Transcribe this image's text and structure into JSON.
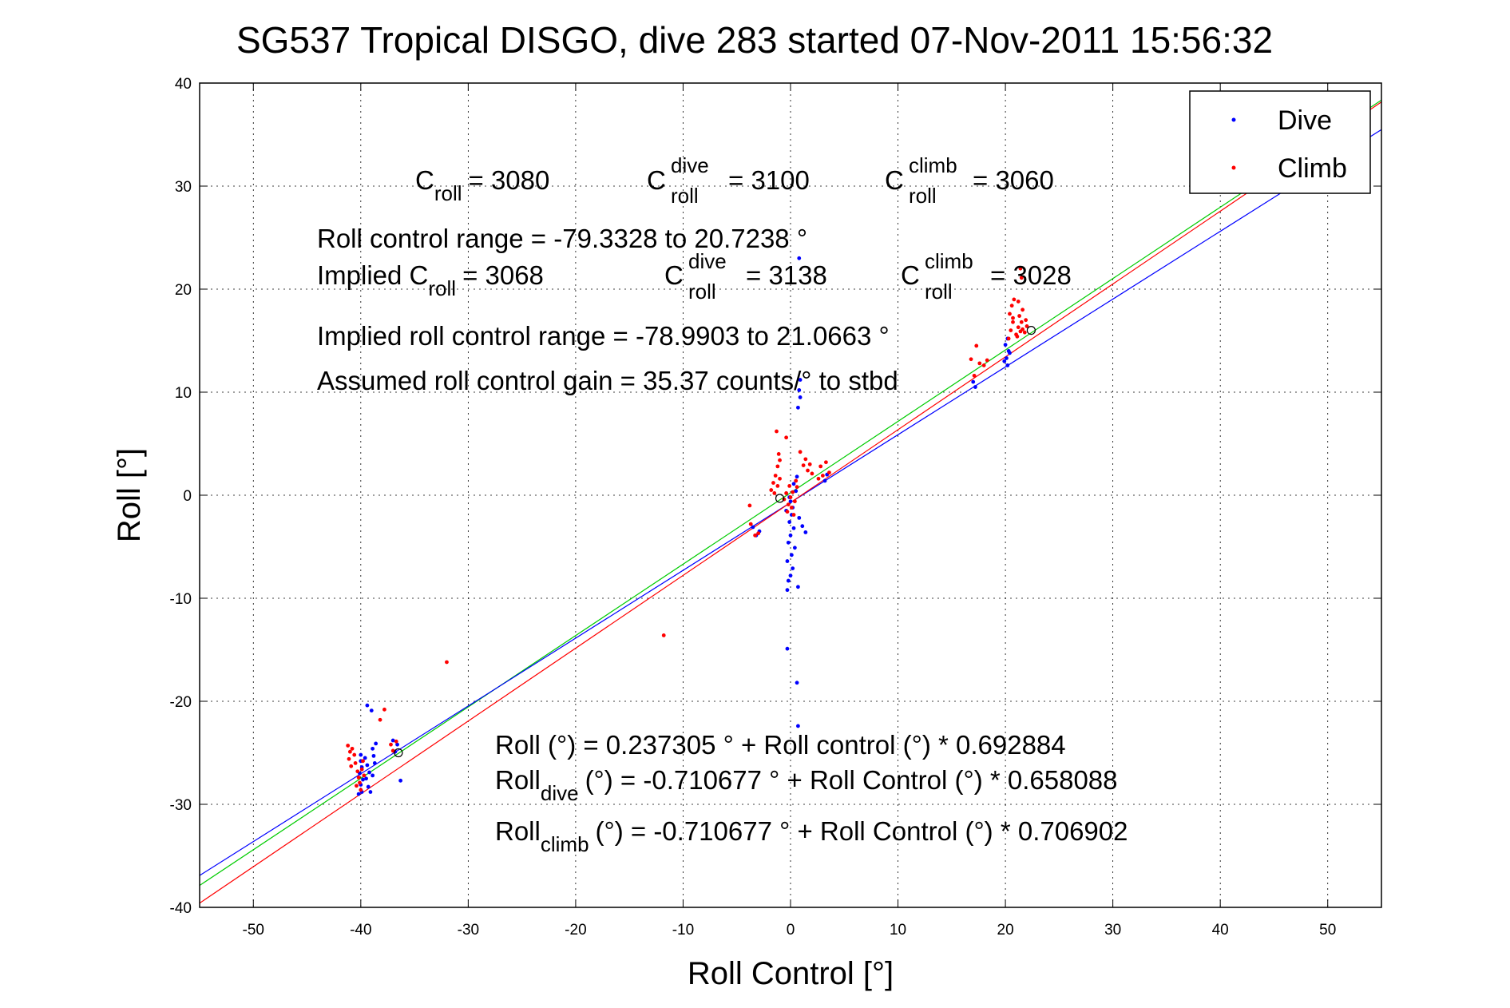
{
  "chart_data": {
    "type": "scatter",
    "title": "SG537 Tropical DISGO, dive 283 started 07-Nov-2011 15:56:32",
    "xlabel": "Roll Control [°]",
    "ylabel": "Roll [°]",
    "xlim": [
      -55,
      55
    ],
    "ylim": [
      -40,
      40
    ],
    "x_ticks": [
      -50,
      -40,
      -30,
      -20,
      -10,
      0,
      10,
      20,
      30,
      40,
      50
    ],
    "y_ticks": [
      40,
      30,
      20,
      10,
      0,
      -10,
      -20,
      -30,
      -40
    ],
    "grid": true,
    "legend": {
      "position": "top-right",
      "entries": [
        {
          "label": "Dive",
          "color": "#0000ff"
        },
        {
          "label": "Climb",
          "color": "#ff0000"
        }
      ]
    },
    "series": [
      {
        "name": "Dive",
        "color": "#0000ff",
        "points": [
          [
            -40.0,
            -25.2
          ],
          [
            -40.0,
            -25.8
          ],
          [
            -39.9,
            -26.4
          ],
          [
            -40.1,
            -27.0
          ],
          [
            -39.8,
            -27.6
          ],
          [
            -40.0,
            -28.1
          ],
          [
            -39.9,
            -28.8
          ],
          [
            -40.2,
            -29.0
          ],
          [
            -39.6,
            -25.5
          ],
          [
            -39.4,
            -26.2
          ],
          [
            -39.2,
            -26.9
          ],
          [
            -39.5,
            -27.5
          ],
          [
            -39.3,
            -28.3
          ],
          [
            -39.1,
            -28.8
          ],
          [
            -38.9,
            -24.6
          ],
          [
            -38.8,
            -25.3
          ],
          [
            -38.7,
            -26.0
          ],
          [
            -38.9,
            -27.2
          ],
          [
            -38.6,
            -24.1
          ],
          [
            -39.4,
            -20.4
          ],
          [
            -39.0,
            -20.9
          ],
          [
            -37.0,
            -23.8
          ],
          [
            -36.6,
            -24.2
          ],
          [
            -36.3,
            -27.7
          ],
          [
            -36.8,
            -24.9
          ],
          [
            0.0,
            -0.6
          ],
          [
            0.2,
            -1.2
          ],
          [
            0.1,
            -1.9
          ],
          [
            -0.1,
            -2.6
          ],
          [
            0.3,
            -3.2
          ],
          [
            0.0,
            -3.9
          ],
          [
            -0.2,
            -4.6
          ],
          [
            0.4,
            -5.1
          ],
          [
            0.1,
            -5.8
          ],
          [
            -0.3,
            -6.4
          ],
          [
            0.2,
            -7.1
          ],
          [
            0.0,
            -7.8
          ],
          [
            -0.2,
            -8.3
          ],
          [
            -0.3,
            -9.2
          ],
          [
            0.7,
            -8.9
          ],
          [
            -0.1,
            -0.2
          ],
          [
            0.5,
            0.4
          ],
          [
            0.3,
            1.1
          ],
          [
            0.6,
            1.8
          ],
          [
            -0.4,
            -1.5
          ],
          [
            0.8,
            -2.2
          ],
          [
            1.1,
            -3.0
          ],
          [
            1.4,
            -3.6
          ],
          [
            0.9,
            9.5
          ],
          [
            0.8,
            10.2
          ],
          [
            0.9,
            11.2
          ],
          [
            0.7,
            8.5
          ],
          [
            0.8,
            23.0
          ],
          [
            -0.3,
            -14.9
          ],
          [
            0.6,
            -18.2
          ],
          [
            0.7,
            -22.4
          ],
          [
            -3.5,
            -3.1
          ],
          [
            -3.2,
            -3.9
          ],
          [
            -2.9,
            -3.5
          ],
          [
            3.2,
            1.4
          ],
          [
            3.4,
            2.0
          ],
          [
            20.2,
            12.6
          ],
          [
            20.1,
            13.3
          ],
          [
            20.3,
            14.0
          ],
          [
            20.0,
            14.6
          ],
          [
            20.2,
            15.2
          ],
          [
            20.4,
            13.8
          ],
          [
            19.9,
            13.0
          ],
          [
            17.2,
            10.5
          ],
          [
            17.0,
            11.0
          ]
        ]
      },
      {
        "name": "Climb",
        "color": "#ff0000",
        "points": [
          [
            -41.2,
            -24.3
          ],
          [
            -41.0,
            -24.9
          ],
          [
            -41.1,
            -25.6
          ],
          [
            -40.9,
            -26.3
          ],
          [
            -40.8,
            -24.6
          ],
          [
            -40.6,
            -25.2
          ],
          [
            -40.5,
            -26.0
          ],
          [
            -40.3,
            -26.8
          ],
          [
            -40.2,
            -27.4
          ],
          [
            -40.1,
            -27.9
          ],
          [
            -40.4,
            -28.2
          ],
          [
            -39.9,
            -26.6
          ],
          [
            -39.7,
            -27.2
          ],
          [
            -40.0,
            -28.6
          ],
          [
            -39.8,
            -25.8
          ],
          [
            -37.8,
            -20.8
          ],
          [
            -38.2,
            -21.8
          ],
          [
            -37.2,
            -24.2
          ],
          [
            -37.0,
            -24.8
          ],
          [
            -36.7,
            -23.9
          ],
          [
            -32.0,
            -16.2
          ],
          [
            -11.8,
            -13.6
          ],
          [
            -3.3,
            -3.9
          ],
          [
            -3.0,
            -3.7
          ],
          [
            -3.8,
            -1.0
          ],
          [
            -3.7,
            -2.8
          ],
          [
            -1.8,
            0.5
          ],
          [
            -1.6,
            1.2
          ],
          [
            -1.4,
            1.9
          ],
          [
            -1.2,
            0.9
          ],
          [
            -1.0,
            1.6
          ],
          [
            -1.5,
            0.2
          ],
          [
            -1.2,
            2.8
          ],
          [
            -1.0,
            3.4
          ],
          [
            -1.1,
            4.0
          ],
          [
            -1.3,
            6.2
          ],
          [
            -0.4,
            5.6
          ],
          [
            -0.6,
            -0.4
          ],
          [
            -0.4,
            0.2
          ],
          [
            -0.2,
            -0.9
          ],
          [
            0.0,
            -0.2
          ],
          [
            0.2,
            0.3
          ],
          [
            0.4,
            -0.6
          ],
          [
            0.6,
            0.8
          ],
          [
            -0.3,
            -1.6
          ],
          [
            0.1,
            -1.2
          ],
          [
            0.3,
            -1.9
          ],
          [
            -0.1,
            0.9
          ],
          [
            0.5,
            1.4
          ],
          [
            1.2,
            2.9
          ],
          [
            1.4,
            3.5
          ],
          [
            1.6,
            2.4
          ],
          [
            1.8,
            3.0
          ],
          [
            2.0,
            2.1
          ],
          [
            0.9,
            4.2
          ],
          [
            2.8,
            2.8
          ],
          [
            3.3,
            3.2
          ],
          [
            3.6,
            2.2
          ],
          [
            2.6,
            1.6
          ],
          [
            3.0,
            1.9
          ],
          [
            16.8,
            13.2
          ],
          [
            17.3,
            14.5
          ],
          [
            17.6,
            12.8
          ],
          [
            17.1,
            11.6
          ],
          [
            18.0,
            12.6
          ],
          [
            18.3,
            13.1
          ],
          [
            20.3,
            15.2
          ],
          [
            20.5,
            16.0
          ],
          [
            20.7,
            16.8
          ],
          [
            20.4,
            17.6
          ],
          [
            20.6,
            18.4
          ],
          [
            20.8,
            19.0
          ],
          [
            21.0,
            15.6
          ],
          [
            21.2,
            16.3
          ],
          [
            21.4,
            15.9
          ],
          [
            21.5,
            16.8
          ],
          [
            21.3,
            17.4
          ],
          [
            21.6,
            16.1
          ],
          [
            21.8,
            15.8
          ],
          [
            22.0,
            16.4
          ],
          [
            21.9,
            17.0
          ],
          [
            21.6,
            18.0
          ],
          [
            21.2,
            18.8
          ],
          [
            21.4,
            22.0
          ],
          [
            21.5,
            21.1
          ],
          [
            20.7,
            17.2
          ],
          [
            21.1,
            15.4
          ]
        ]
      }
    ],
    "fit_lines": [
      {
        "label": "Roll (°) = 0.237305 ° + Roll control (°) * 0.692884",
        "color": "#00cc00",
        "intercept": 0.237305,
        "slope": 0.692884
      },
      {
        "label": "Roll dive (°) = -0.710677 ° + Roll Control (°) * 0.658088",
        "color": "#0000ff",
        "intercept": -0.710677,
        "slope": 0.658088
      },
      {
        "label": "Roll climb (°) = -0.710677 ° + Roll Control (°) * 0.706902",
        "color": "#ff0000",
        "intercept": -0.710677,
        "slope": 0.706902
      }
    ],
    "circle_markers": [
      [
        22.4,
        16.0
      ],
      [
        -36.5,
        -25.0
      ],
      [
        -1.0,
        -0.3
      ]
    ],
    "annotations": {
      "c_roll": {
        "sym": "C",
        "sub": "roll",
        "value": "= 3080"
      },
      "c_roll_dive": {
        "sym": "C",
        "sup": "dive",
        "sub": "roll",
        "value": "= 3100"
      },
      "c_roll_climb": {
        "sym": "C",
        "sup": "climb",
        "sub": "roll",
        "value": "= 3060"
      },
      "roll_range": "Roll control range = -79.3328 to 20.7238 °",
      "implied_prefix": "Implied C",
      "implied_sub": "roll",
      "implied_value": "= 3068",
      "implied_dive": {
        "sym": "C",
        "sup": "dive",
        "sub": "roll",
        "value": "= 3138"
      },
      "implied_climb": {
        "sym": "C",
        "sup": "climb",
        "sub": "roll",
        "value": "= 3028"
      },
      "implied_range": "Implied roll control range = -78.9903 to 21.0663 °",
      "gain": "Assumed roll control gain = 35.37 counts/° to stbd",
      "eq1": "Roll (°) = 0.237305 ° + Roll control (°) * 0.692884",
      "eq2_base": "Roll",
      "eq2_sub": "dive",
      "eq2_rest": "(°) = -0.710677 ° + Roll Control (°) * 0.658088",
      "eq3_base": "Roll",
      "eq3_sub": "climb",
      "eq3_rest": "(°) = -0.710677 ° + Roll Control (°) * 0.706902"
    }
  }
}
